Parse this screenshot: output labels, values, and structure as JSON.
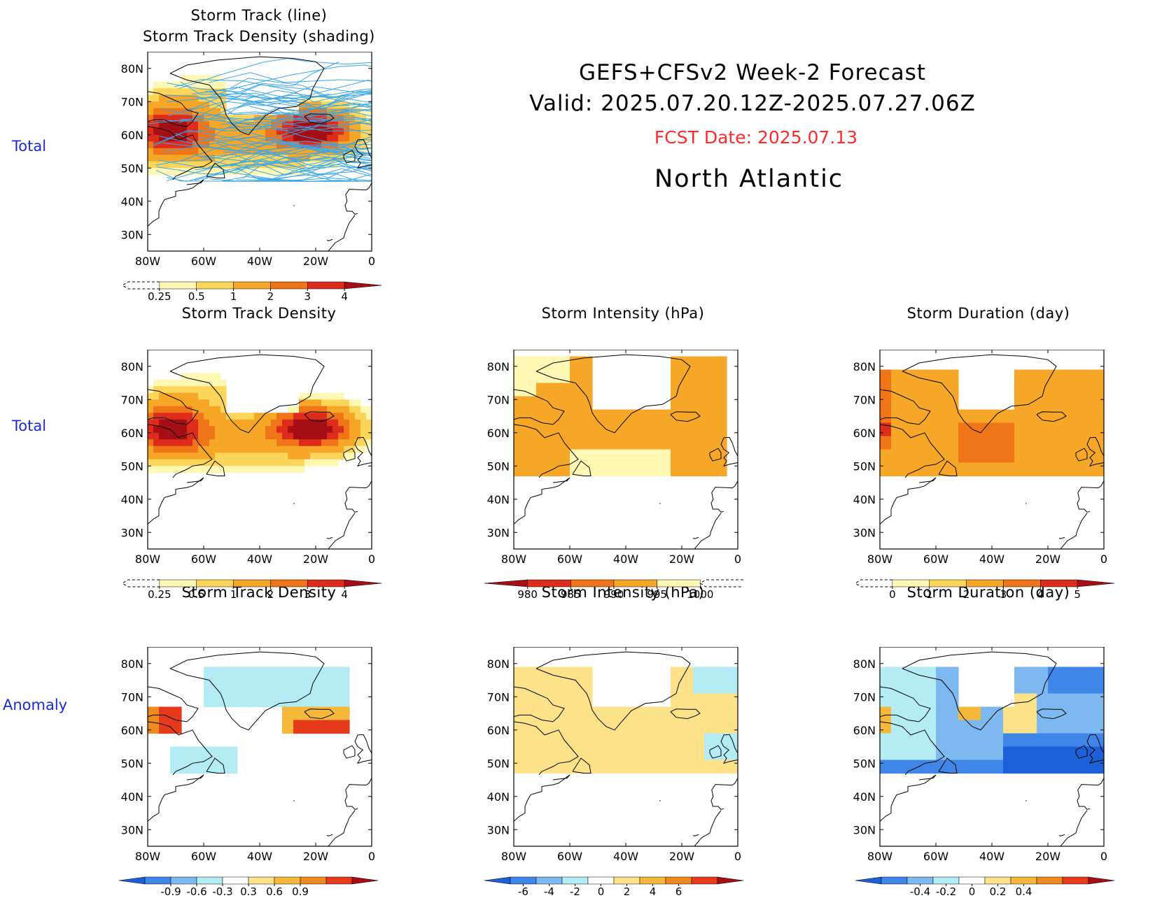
{
  "header": {
    "title_line1": "GEFS+CFSv2 Week-2 Forecast",
    "title_line2": "Valid: 2025.07.20.12Z-2025.07.27.06Z",
    "fcst_date": "FCST Date: 2025.07.13",
    "region": "North Atlantic"
  },
  "row_labels": {
    "row1": "Total",
    "row2": "Total",
    "row3": "Anomaly"
  },
  "axes": {
    "lat_ticks": [
      "80N",
      "70N",
      "60N",
      "50N",
      "40N",
      "30N"
    ],
    "lon_ticks": [
      "80W",
      "60W",
      "40W",
      "20W",
      "0"
    ]
  },
  "colors": {
    "density": [
      "#fff8b4",
      "#fcd65a",
      "#f7a727",
      "#f07418",
      "#dd2c1b",
      "#a50e14"
    ],
    "intensity": [
      "#a50e14",
      "#dd2c1b",
      "#f07418",
      "#f7a727",
      "#fff8b4"
    ],
    "duration": [
      "#fff8b4",
      "#fcd65a",
      "#f7a727",
      "#f07418",
      "#dd2c1b",
      "#a50e14"
    ],
    "anomaly": [
      "#1c5fd6",
      "#3f86e8",
      "#7db8f0",
      "#b4ecf5",
      "#ffffff",
      "#fde28a",
      "#f5b83a",
      "#ef8a1f",
      "#e53a1c",
      "#a50e14"
    ],
    "track_line": "#3aa6e8"
  },
  "panels": {
    "p1": {
      "title_line1": "Storm Track (line)",
      "title_line2": "Storm Track Density (shading)"
    },
    "p2": {
      "title": "Storm Track Density"
    },
    "p3": {
      "title": "Storm Intensity (hPa)"
    },
    "p4": {
      "title": "Storm Duration (day)"
    },
    "p5": {
      "title": "Storm Track Density"
    },
    "p6": {
      "title": "Storm Intensity (hPa)"
    },
    "p7": {
      "title": "Storm Duration (day)"
    }
  },
  "colorbars": {
    "density": [
      "0.25",
      "0.5",
      "1",
      "2",
      "3",
      "4"
    ],
    "intensity": [
      "980",
      "985",
      "990",
      "995",
      "1000"
    ],
    "duration": [
      "0",
      "1",
      "2",
      "3",
      "4",
      "5"
    ],
    "density_anom": [
      "-0.9",
      "-0.6",
      "-0.3",
      "0.3",
      "0.6",
      "0.9"
    ],
    "intensity_anom": [
      "-6",
      "-4",
      "-2",
      "0",
      "2",
      "4",
      "6"
    ],
    "duration_anom": [
      "-0.4",
      "-0.2",
      "0",
      "0.2",
      "0.4"
    ]
  },
  "chart_data": [
    {
      "type": "heatmap",
      "panel": "p1",
      "title": "Storm Track (line) / Storm Track Density (shading)",
      "xrange": [
        "80W",
        "0"
      ],
      "yrange": [
        "25N",
        "85N"
      ],
      "colorbar_levels": [
        0.25,
        0.5,
        1,
        2,
        3,
        4
      ],
      "max_regions": [
        {
          "lon": "70W",
          "lat": "60N",
          "value": 4
        },
        {
          "lon": "20W",
          "lat": "61N",
          "value": 4
        }
      ]
    },
    {
      "type": "heatmap",
      "panel": "p2",
      "title": "Storm Track Density",
      "xrange": [
        "80W",
        "0"
      ],
      "yrange": [
        "25N",
        "85N"
      ],
      "colorbar_levels": [
        0.25,
        0.5,
        1,
        2,
        3,
        4
      ],
      "max_regions": [
        {
          "lon": "72W",
          "lat": "61N",
          "value": 4
        },
        {
          "lon": "20W",
          "lat": "61N",
          "value": 4
        }
      ]
    },
    {
      "type": "heatmap",
      "panel": "p3",
      "title": "Storm Intensity (hPa)",
      "xrange": [
        "80W",
        "0"
      ],
      "yrange": [
        "25N",
        "85N"
      ],
      "colorbar_levels": [
        980,
        985,
        990,
        995,
        1000
      ]
    },
    {
      "type": "heatmap",
      "panel": "p4",
      "title": "Storm Duration (day)",
      "xrange": [
        "80W",
        "0"
      ],
      "yrange": [
        "25N",
        "85N"
      ],
      "colorbar_levels": [
        0,
        1,
        2,
        3,
        4,
        5
      ]
    },
    {
      "type": "heatmap",
      "panel": "p5",
      "title": "Storm Track Density (anomaly)",
      "xrange": [
        "80W",
        "0"
      ],
      "yrange": [
        "25N",
        "85N"
      ],
      "colorbar_levels": [
        -0.9,
        -0.6,
        -0.3,
        0.3,
        0.6,
        0.9
      ]
    },
    {
      "type": "heatmap",
      "panel": "p6",
      "title": "Storm Intensity (hPa) (anomaly)",
      "xrange": [
        "80W",
        "0"
      ],
      "yrange": [
        "25N",
        "85N"
      ],
      "colorbar_levels": [
        -6,
        -4,
        -2,
        0,
        2,
        4,
        6
      ]
    },
    {
      "type": "heatmap",
      "panel": "p7",
      "title": "Storm Duration (day) (anomaly)",
      "xrange": [
        "80W",
        "0"
      ],
      "yrange": [
        "25N",
        "85N"
      ],
      "colorbar_levels": [
        -0.4,
        -0.2,
        0,
        0.2,
        0.4
      ]
    }
  ]
}
